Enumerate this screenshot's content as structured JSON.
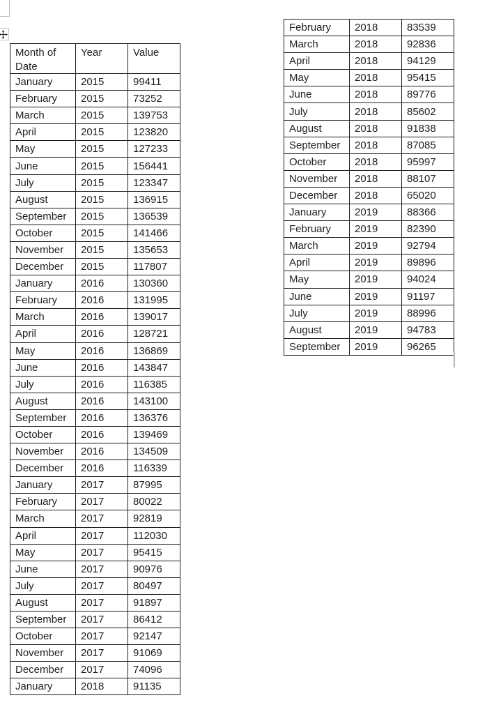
{
  "page": {
    "background": "#ffffff",
    "text_color": "#1f1f1f",
    "table_border_color": "#1c1c1c",
    "handle_border_color": "#c6c6c6",
    "cursor_color": "#b5b5b5"
  },
  "icons": {
    "move_handle": "four-way-move-arrow"
  },
  "left_table": {
    "headers": [
      "Month of Date",
      "Year",
      "Value"
    ],
    "rows": [
      [
        "January",
        "2015",
        "99411"
      ],
      [
        "February",
        "2015",
        "73252"
      ],
      [
        "March",
        "2015",
        "139753"
      ],
      [
        "April",
        "2015",
        "123820"
      ],
      [
        "May",
        "2015",
        "127233"
      ],
      [
        "June",
        "2015",
        "156441"
      ],
      [
        "July",
        "2015",
        "123347"
      ],
      [
        "August",
        "2015",
        "136915"
      ],
      [
        "September",
        "2015",
        "136539"
      ],
      [
        "October",
        "2015",
        "141466"
      ],
      [
        "November",
        "2015",
        "135653"
      ],
      [
        "December",
        "2015",
        "117807"
      ],
      [
        "January",
        "2016",
        "130360"
      ],
      [
        "February",
        "2016",
        "131995"
      ],
      [
        "March",
        "2016",
        "139017"
      ],
      [
        "April",
        "2016",
        "128721"
      ],
      [
        "May",
        "2016",
        "136869"
      ],
      [
        "June",
        "2016",
        "143847"
      ],
      [
        "July",
        "2016",
        "116385"
      ],
      [
        "August",
        "2016",
        "143100"
      ],
      [
        "September",
        "2016",
        "136376"
      ],
      [
        "October",
        "2016",
        "139469"
      ],
      [
        "November",
        "2016",
        "134509"
      ],
      [
        "December",
        "2016",
        "116339"
      ],
      [
        "January",
        "2017",
        "87995"
      ],
      [
        "February",
        "2017",
        "80022"
      ],
      [
        "March",
        "2017",
        "92819"
      ],
      [
        "April",
        "2017",
        "112030"
      ],
      [
        "May",
        "2017",
        "95415"
      ],
      [
        "June",
        "2017",
        "90976"
      ],
      [
        "July",
        "2017",
        "80497"
      ],
      [
        "August",
        "2017",
        "91897"
      ],
      [
        "September",
        "2017",
        "86412"
      ],
      [
        "October",
        "2017",
        "92147"
      ],
      [
        "November",
        "2017",
        "91069"
      ],
      [
        "December",
        "2017",
        "74096"
      ],
      [
        "January",
        "2018",
        "91135"
      ]
    ]
  },
  "right_table": {
    "rows": [
      [
        "February",
        "2018",
        "83539"
      ],
      [
        "March",
        "2018",
        "92836"
      ],
      [
        "April",
        "2018",
        "94129"
      ],
      [
        "May",
        "2018",
        "95415"
      ],
      [
        "June",
        "2018",
        "89776"
      ],
      [
        "July",
        "2018",
        "85602"
      ],
      [
        "August",
        "2018",
        "91838"
      ],
      [
        "September",
        "2018",
        "87085"
      ],
      [
        "October",
        "2018",
        "95997"
      ],
      [
        "November",
        "2018",
        "88107"
      ],
      [
        "December",
        "2018",
        "65020"
      ],
      [
        "January",
        "2019",
        "88366"
      ],
      [
        "February",
        "2019",
        "82390"
      ],
      [
        "March",
        "2019",
        "92794"
      ],
      [
        "April",
        "2019",
        "89896"
      ],
      [
        "May",
        "2019",
        "94024"
      ],
      [
        "June",
        "2019",
        "91197"
      ],
      [
        "July",
        "2019",
        "88996"
      ],
      [
        "August",
        "2019",
        "94783"
      ],
      [
        "September",
        "2019",
        "96265"
      ]
    ]
  }
}
